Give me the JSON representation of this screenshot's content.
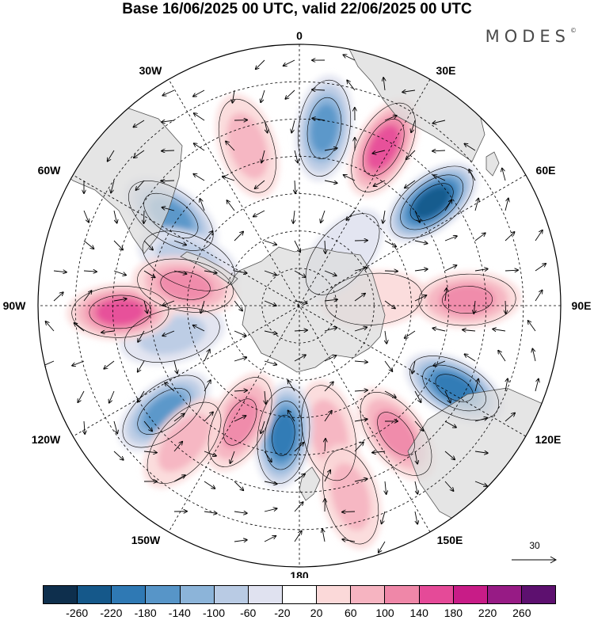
{
  "title": "Base 16/06/2025 00 UTC, valid 22/06/2025 00 UTC",
  "brand": "MODES",
  "brand_mark": "©",
  "longitude_labels": {
    "top": "0",
    "top_right": "30E",
    "right_upper": "60E",
    "right": "90E",
    "right_lower": "120E",
    "bottom_right": "150E",
    "bottom": "180",
    "bottom_left": "150W",
    "left_lower": "120W",
    "left": "90W",
    "left_upper": "60W",
    "top_left": "30W"
  },
  "reference_vector": {
    "value": "30",
    "icon": "arrow-right-icon"
  },
  "colorbar": {
    "colors": [
      "#0e2f4d",
      "#15588a",
      "#2f79b4",
      "#5795c8",
      "#8cb4d9",
      "#b9cbe4",
      "#e0e2f0",
      "#ffffff",
      "#fbd9d9",
      "#f6b4c1",
      "#ef87a8",
      "#e54a98",
      "#c81c87",
      "#971b85",
      "#5d106f"
    ],
    "labels": [
      "-260",
      "-220",
      "-180",
      "-140",
      "-100",
      "-60",
      "-20",
      "20",
      "60",
      "100",
      "140",
      "180",
      "220",
      "260"
    ]
  },
  "anomaly_centers": [
    {
      "lon": -55,
      "lat": -48,
      "value": -140
    },
    {
      "lon": -18,
      "lat": -45,
      "value": 80
    },
    {
      "lon": 8,
      "lat": -42,
      "value": -140
    },
    {
      "lon": 28,
      "lat": -42,
      "value": 150
    },
    {
      "lon": 52,
      "lat": -45,
      "value": -220
    },
    {
      "lon": 88,
      "lat": -45,
      "value": 110
    },
    {
      "lon": 118,
      "lat": -43,
      "value": -200
    },
    {
      "lon": 143,
      "lat": -47,
      "value": 100
    },
    {
      "lon": 167,
      "lat": -55,
      "value": 80
    },
    {
      "lon": -173,
      "lat": -55,
      "value": -200
    },
    {
      "lon": -153,
      "lat": -55,
      "value": 110
    },
    {
      "lon": -128,
      "lat": -44,
      "value": -140
    },
    {
      "lon": -103,
      "lat": -55,
      "value": -90
    },
    {
      "lon": -92,
      "lat": -42,
      "value": 150
    },
    {
      "lon": -68,
      "lat": -58,
      "value": -80
    },
    {
      "lon": -80,
      "lat": -59,
      "value": 120
    },
    {
      "lon": 85,
      "lat": -70,
      "value": 40
    },
    {
      "lon": -140,
      "lat": -42,
      "value": 60
    },
    {
      "lon": 165,
      "lat": -37,
      "value": 60
    },
    {
      "lon": 40,
      "lat": -72,
      "value": -40
    }
  ]
}
